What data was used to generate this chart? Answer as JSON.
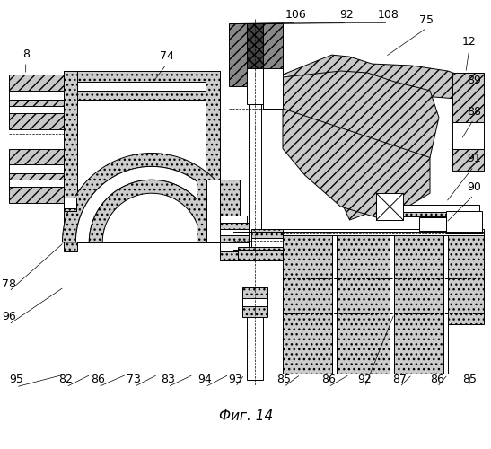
{
  "title": "Фиг. 14",
  "title_fontsize": 11,
  "background_color": "#ffffff",
  "dot_fc": "#cccccc",
  "diag_fc": "#d8d8d8",
  "crosshatch_fc": "#555555"
}
